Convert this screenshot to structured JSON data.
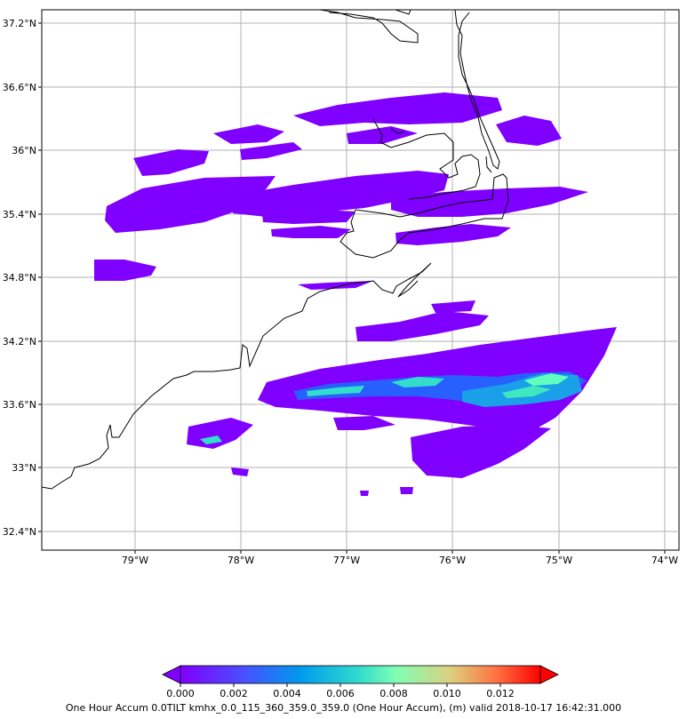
{
  "map": {
    "lat_ticks": [
      "37.2°N",
      "36.6°N",
      "36°N",
      "35.4°N",
      "34.8°N",
      "34.2°N",
      "33.6°N",
      "33°N",
      "32.4°N"
    ],
    "lon_ticks": [
      "79°W",
      "78°W",
      "77°W",
      "76°W",
      "75°W",
      "74°W"
    ],
    "grid": true,
    "coastline_color": "#000000",
    "field_colormap": "rainbow"
  },
  "colorbar": {
    "ticks": [
      "0.000",
      "0.002",
      "0.004",
      "0.006",
      "0.008",
      "0.010",
      "0.012"
    ],
    "range": [
      0.0,
      0.0135
    ],
    "extend": "both",
    "caption": "One Hour Accum 0.0TILT kmhx_0.0_115_360_359.0_359.0 (One Hour Accum), (m) valid 2018-10-17 16:42:31.000"
  }
}
